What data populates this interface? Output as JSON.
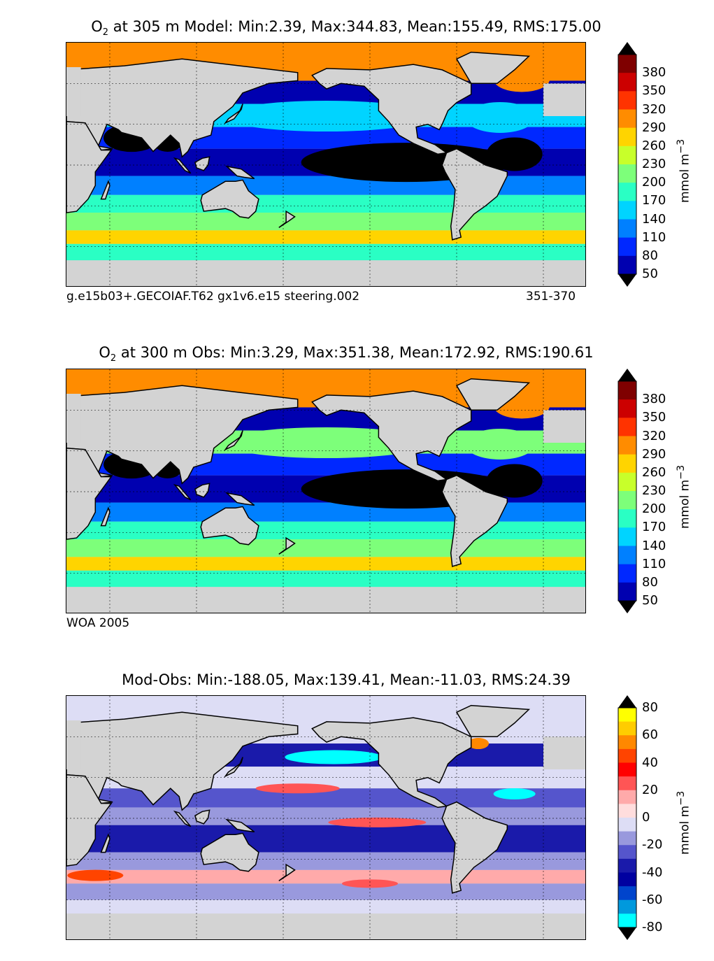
{
  "chart_data": [
    {
      "type": "heatmap",
      "title_species": "O",
      "title_sub": "2",
      "title": " at 305 m Model: Min:2.39, Max:344.83, Mean:155.49, RMS:175.00",
      "note_left": "g.e15b03+.GECOIAF.T62 gx1v6.e15 steering.002",
      "note_right": "351-370",
      "colorbar": {
        "label": "mmol m",
        "label_sup": "−3",
        "ticks": [
          "380",
          "350",
          "320",
          "290",
          "260",
          "230",
          "200",
          "170",
          "140",
          "110",
          "80",
          "50"
        ],
        "colors": [
          "#7f0000",
          "#cc0000",
          "#ff3300",
          "#ff8c00",
          "#ffd400",
          "#c8ff2a",
          "#7dff7a",
          "#2affc4",
          "#00d4ff",
          "#0080ff",
          "#0028ff",
          "#0000b0"
        ],
        "arrow_top": "#000000",
        "arrow_bottom": "#000000"
      },
      "stats": {
        "min": 2.39,
        "max": 344.83,
        "mean": 155.49,
        "rms": 175.0
      },
      "depth_m": 305
    },
    {
      "type": "heatmap",
      "title_species": "O",
      "title_sub": "2",
      "title": " at 300 m Obs: Min:3.29, Max:351.38, Mean:172.92, RMS:190.61",
      "note_left": "WOA 2005",
      "note_right": "",
      "colorbar": {
        "label": "mmol m",
        "label_sup": "−3",
        "ticks": [
          "380",
          "350",
          "320",
          "290",
          "260",
          "230",
          "200",
          "170",
          "140",
          "110",
          "80",
          "50"
        ],
        "colors": [
          "#7f0000",
          "#cc0000",
          "#ff3300",
          "#ff8c00",
          "#ffd400",
          "#c8ff2a",
          "#7dff7a",
          "#2affc4",
          "#00d4ff",
          "#0080ff",
          "#0028ff",
          "#0000b0"
        ],
        "arrow_top": "#000000",
        "arrow_bottom": "#000000"
      },
      "stats": {
        "min": 3.29,
        "max": 351.38,
        "mean": 172.92,
        "rms": 190.61
      },
      "depth_m": 300
    },
    {
      "type": "heatmap",
      "title_species": "",
      "title_sub": "",
      "title": "Mod-Obs: Min:-188.05, Max:139.41, Mean:-11.03, RMS:24.39",
      "note_left": "",
      "note_right": "",
      "colorbar": {
        "label": "mmol m",
        "label_sup": "−3",
        "ticks": [
          "80",
          "60",
          "40",
          "20",
          "0",
          "-20",
          "-40",
          "-60",
          "-80"
        ],
        "colors": [
          "#ffff00",
          "#ffcc00",
          "#ff8800",
          "#ff4400",
          "#ff0000",
          "#ff5555",
          "#ffaaaa",
          "#ffdddd",
          "#ddddf5",
          "#9999dd",
          "#5555cc",
          "#1a1aaa",
          "#0000a0",
          "#0044cc",
          "#0099dd",
          "#00ffff"
        ],
        "arrow_top": "#000000",
        "arrow_bottom": "#000000"
      },
      "stats": {
        "min": -188.05,
        "max": 139.41,
        "mean": -11.03,
        "rms": 24.39
      }
    }
  ]
}
